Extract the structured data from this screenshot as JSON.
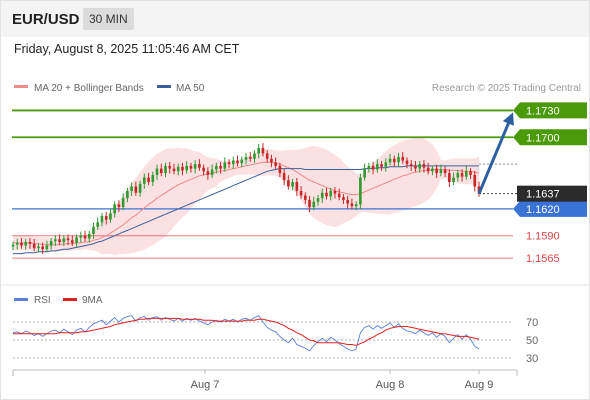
{
  "header": {
    "symbol": "EUR/USD",
    "timeframe": "30 MIN",
    "datetime": "Friday, August 8, 2025 11:05:46 AM CET"
  },
  "legend": {
    "items": [
      {
        "label": "MA 20 + Bollinger Bands",
        "color": "#f08a8a"
      },
      {
        "label": "MA 50",
        "color": "#3a5f9a"
      }
    ],
    "credit": "Research © 2025 Trading Central"
  },
  "chart_data": [
    {
      "type": "candlestick",
      "title": "",
      "ylim": [
        1.1545,
        1.1745
      ],
      "x_ticks": [
        "Aug 7",
        "Aug 8",
        "Aug 9"
      ],
      "current_price": "1.1637",
      "levels": [
        {
          "value": 1.173,
          "label": "1.1730",
          "kind": "resistance",
          "color": "#4a9a0a"
        },
        {
          "value": 1.17,
          "label": "1.1700",
          "kind": "resistance",
          "color": "#4a9a0a"
        },
        {
          "value": 1.162,
          "label": "1.1620",
          "kind": "pivot",
          "color": "#3a73d6"
        },
        {
          "value": 1.159,
          "label": "1.1590",
          "kind": "support",
          "color": "#e04848"
        },
        {
          "value": 1.1565,
          "label": "1.1565",
          "kind": "support",
          "color": "#e04848"
        }
      ],
      "forecast_arrow": {
        "from": 1.1637,
        "to": 1.173,
        "color": "#2d5fa0"
      },
      "close": [
        1.158,
        1.1582,
        1.1579,
        1.1583,
        1.1581,
        1.1576,
        1.1578,
        1.1575,
        1.1579,
        1.1584,
        1.1586,
        1.1583,
        1.1587,
        1.1585,
        1.1582,
        1.1588,
        1.159,
        1.1587,
        1.1592,
        1.16,
        1.1605,
        1.1612,
        1.1608,
        1.1615,
        1.1625,
        1.1622,
        1.1632,
        1.164,
        1.1645,
        1.1638,
        1.1648,
        1.1655,
        1.165,
        1.1658,
        1.1665,
        1.166,
        1.1668,
        1.1665,
        1.1662,
        1.1667,
        1.1663,
        1.1668,
        1.1665,
        1.167,
        1.1666,
        1.1662,
        1.1658,
        1.1664,
        1.1668,
        1.1665,
        1.1672,
        1.167,
        1.1674,
        1.1671,
        1.1675,
        1.1678,
        1.1676,
        1.1682,
        1.1688,
        1.1682,
        1.1676,
        1.1672,
        1.1668,
        1.166,
        1.1652,
        1.1645,
        1.165,
        1.164,
        1.1635,
        1.163,
        1.1622,
        1.1628,
        1.1632,
        1.1638,
        1.1634,
        1.164,
        1.1637,
        1.1633,
        1.163,
        1.1626,
        1.1623,
        1.1625,
        1.1655,
        1.1665,
        1.1668,
        1.1664,
        1.167,
        1.1667,
        1.1672,
        1.1676,
        1.1672,
        1.1678,
        1.1674,
        1.167,
        1.1668,
        1.1665,
        1.167,
        1.1666,
        1.1662,
        1.1665,
        1.166,
        1.1664,
        1.166,
        1.165,
        1.1655,
        1.166,
        1.1656,
        1.1662,
        1.1658,
        1.1645,
        1.1637
      ],
      "series": [
        {
          "name": "MA 20",
          "values": [
            1.1582,
            1.1582,
            1.1582,
            1.1582,
            1.1582,
            1.1581,
            1.1581,
            1.158,
            1.158,
            1.158,
            1.158,
            1.158,
            1.1581,
            1.1581,
            1.1581,
            1.1582,
            1.1582,
            1.1583,
            1.1583,
            1.1585,
            1.1586,
            1.1588,
            1.159,
            1.1593,
            1.1596,
            1.1599,
            1.1602,
            1.1606,
            1.161,
            1.1613,
            1.1617,
            1.1621,
            1.1625,
            1.1628,
            1.1632,
            1.1635,
            1.1638,
            1.1641,
            1.1644,
            1.1647,
            1.1649,
            1.1651,
            1.1653,
            1.1655,
            1.1657,
            1.1658,
            1.1659,
            1.166,
            1.1661,
            1.1662,
            1.1663,
            1.1664,
            1.1665,
            1.1666,
            1.1667,
            1.1668,
            1.1669,
            1.167,
            1.1671,
            1.1672,
            1.1672,
            1.1672,
            1.1671,
            1.167,
            1.1668,
            1.1666,
            1.1664,
            1.1661,
            1.1658,
            1.1655,
            1.1652,
            1.165,
            1.1648,
            1.1646,
            1.1644,
            1.1642,
            1.164,
            1.1639,
            1.1638,
            1.1637,
            1.1636,
            1.1636,
            1.1637,
            1.1639,
            1.1641,
            1.1643,
            1.1645,
            1.1647,
            1.1649,
            1.1651,
            1.1653,
            1.1655,
            1.1657,
            1.1658,
            1.166,
            1.1661,
            1.1662,
            1.1663,
            1.1663,
            1.1664,
            1.1664,
            1.1664,
            1.1664,
            1.1663,
            1.1663,
            1.1663,
            1.1662,
            1.1662,
            1.1662,
            1.1661,
            1.166
          ]
        },
        {
          "name": "MA 50",
          "values": [
            1.157,
            1.157,
            1.157,
            1.1571,
            1.1571,
            1.1571,
            1.1572,
            1.1572,
            1.1572,
            1.1573,
            1.1573,
            1.1574,
            1.1575,
            1.1575,
            1.1576,
            1.1577,
            1.1578,
            1.1579,
            1.158,
            1.1581,
            1.1583,
            1.1584,
            1.1586,
            1.1588,
            1.159,
            1.1592,
            1.1594,
            1.1596,
            1.1598,
            1.16,
            1.1602,
            1.1604,
            1.1606,
            1.1608,
            1.161,
            1.1612,
            1.1614,
            1.1616,
            1.1618,
            1.162,
            1.1622,
            1.1624,
            1.1626,
            1.1628,
            1.163,
            1.1632,
            1.1634,
            1.1636,
            1.1638,
            1.164,
            1.1642,
            1.1644,
            1.1646,
            1.1648,
            1.165,
            1.1652,
            1.1654,
            1.1656,
            1.1658,
            1.166,
            1.1662,
            1.1663,
            1.1664,
            1.1665,
            1.1665,
            1.1665,
            1.1665,
            1.1665,
            1.1665,
            1.1664,
            1.1664,
            1.1664,
            1.1664,
            1.1664,
            1.1664,
            1.1664,
            1.1664,
            1.1664,
            1.1664,
            1.1664,
            1.1664,
            1.1664,
            1.1664,
            1.1665,
            1.1665,
            1.1665,
            1.1666,
            1.1666,
            1.1666,
            1.1667,
            1.1667,
            1.1667,
            1.1667,
            1.1668,
            1.1668,
            1.1668,
            1.1668,
            1.1668,
            1.1668,
            1.1668,
            1.1668,
            1.1668,
            1.1668,
            1.1668,
            1.1668,
            1.1668,
            1.1668,
            1.1668,
            1.1668,
            1.1668,
            1.1668
          ]
        }
      ]
    },
    {
      "type": "line",
      "title": "",
      "ylim": [
        20,
        80
      ],
      "y_ticks": [
        "70",
        "50",
        "30"
      ],
      "legend_items": [
        {
          "label": "RSI",
          "color": "#5a7fd6"
        },
        {
          "label": "9MA",
          "color": "#e02020"
        }
      ],
      "series": [
        {
          "name": "RSI",
          "values": [
            58,
            59,
            57,
            60,
            58,
            55,
            57,
            54,
            57,
            60,
            61,
            58,
            62,
            59,
            56,
            61,
            63,
            59,
            64,
            68,
            70,
            72,
            67,
            71,
            75,
            70,
            74,
            76,
            77,
            71,
            75,
            76,
            72,
            75,
            76,
            72,
            75,
            73,
            71,
            74,
            71,
            74,
            72,
            74,
            71,
            69,
            67,
            70,
            72,
            70,
            73,
            71,
            73,
            70,
            73,
            74,
            72,
            75,
            77,
            70,
            64,
            61,
            59,
            54,
            50,
            47,
            52,
            45,
            43,
            41,
            38,
            44,
            48,
            52,
            48,
            53,
            50,
            46,
            43,
            40,
            38,
            40,
            58,
            64,
            66,
            62,
            66,
            63,
            66,
            69,
            64,
            68,
            63,
            60,
            59,
            57,
            61,
            58,
            55,
            58,
            53,
            57,
            54,
            47,
            52,
            56,
            51,
            56,
            51,
            43,
            40
          ]
        },
        {
          "name": "9MA",
          "values": [
            57,
            57,
            57,
            57,
            57,
            57,
            57,
            57,
            57,
            57,
            57,
            58,
            58,
            58,
            58,
            58,
            59,
            59,
            60,
            61,
            62,
            63,
            64,
            65,
            67,
            68,
            69,
            70,
            71,
            72,
            73,
            73,
            74,
            74,
            74,
            74,
            74,
            74,
            74,
            74,
            73,
            73,
            73,
            73,
            73,
            72,
            72,
            72,
            71,
            71,
            71,
            71,
            71,
            71,
            71,
            72,
            72,
            72,
            73,
            73,
            72,
            71,
            70,
            68,
            66,
            63,
            61,
            58,
            56,
            53,
            50,
            49,
            47,
            47,
            47,
            47,
            47,
            47,
            46,
            45,
            45,
            44,
            46,
            48,
            51,
            53,
            56,
            58,
            61,
            63,
            64,
            65,
            65,
            65,
            64,
            63,
            62,
            61,
            60,
            59,
            58,
            57,
            57,
            56,
            55,
            54,
            54,
            54,
            53,
            52,
            51
          ]
        }
      ]
    }
  ]
}
